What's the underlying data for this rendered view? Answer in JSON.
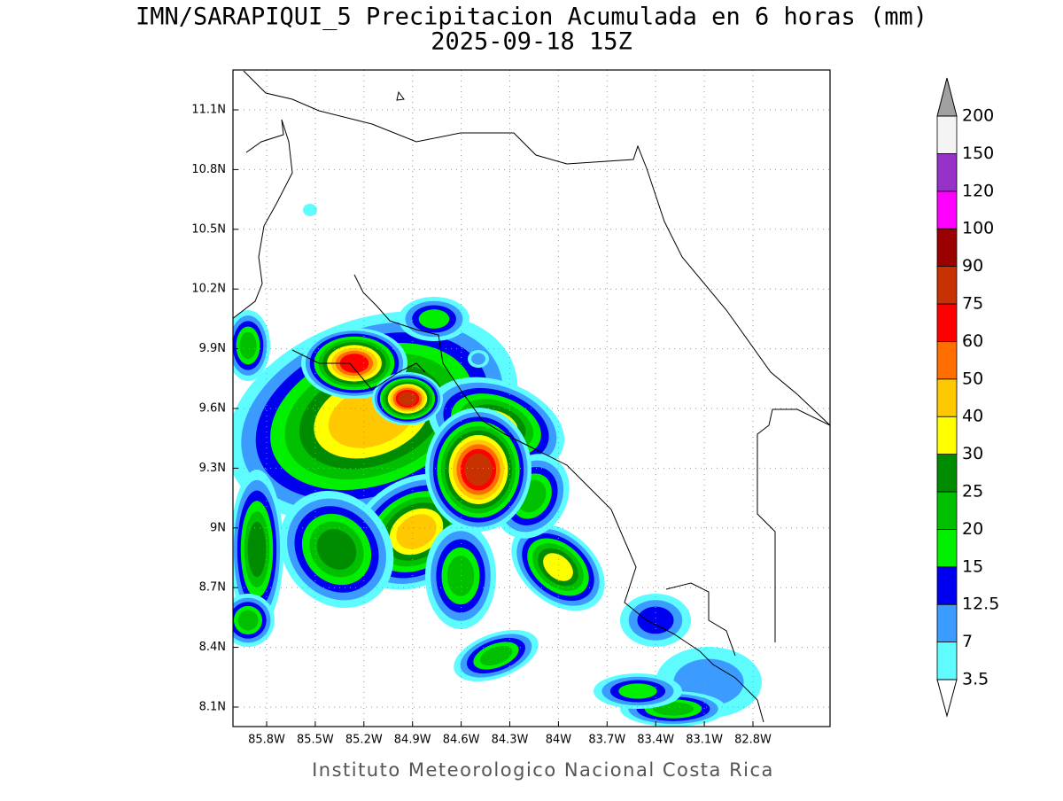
{
  "title": "IMN/SARAPIQUI_5 Precipitacion Acumulada en 6 horas (mm)",
  "subtitle": "2025-09-18 15Z",
  "lat_labels": [
    "11.1N",
    "10.8N",
    "10.5N",
    "10.2N",
    "9.9N",
    "9.6N",
    "9.3N",
    "9N",
    "8.7N",
    "8.4N",
    "8.1N"
  ],
  "lon_labels": [
    "85.8W",
    "85.5W",
    "85.2W",
    "84.9W",
    "84.6W",
    "84.3W",
    "84W",
    "83.7W",
    "83.4W",
    "83.1W",
    "82.8W"
  ],
  "colorbar": {
    "labels": [
      "3.5",
      "7",
      "12.5",
      "15",
      "20",
      "25",
      "30",
      "40",
      "50",
      "60",
      "75",
      "90",
      "100",
      "120",
      "150",
      "200"
    ],
    "under_color": "#ffffff",
    "colors": [
      "#5ffcff",
      "#3c9bff",
      "#0000f0",
      "#00f000",
      "#00c000",
      "#008c00",
      "#ffff00",
      "#ffc800",
      "#ff6e00",
      "#ff0000",
      "#c83200",
      "#9b0000",
      "#ff00ff",
      "#9632c8",
      "#f4f4f4"
    ],
    "over_color": "#a0a0a0"
  },
  "footer": "Instituto Meteorologico Nacional Costa Rica"
}
